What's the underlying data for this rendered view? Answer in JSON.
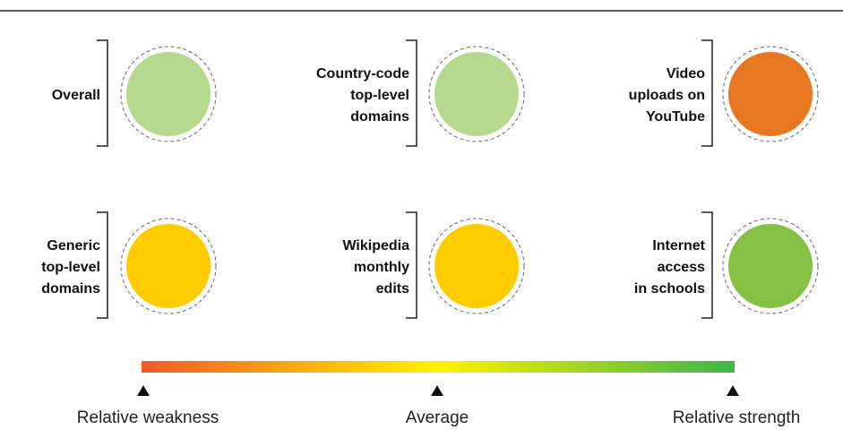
{
  "items": [
    {
      "label": [
        "Overall"
      ],
      "color": "#b5d98f"
    },
    {
      "label": [
        "Country-code",
        "top-level",
        "domains"
      ],
      "color": "#b5d98f"
    },
    {
      "label": [
        "Video",
        "uploads on",
        "YouTube"
      ],
      "color": "#e87722"
    },
    {
      "label": [
        "Generic",
        "top-level",
        "domains"
      ],
      "color": "#ffcc00"
    },
    {
      "label": [
        "Wikipedia",
        "monthly",
        "edits"
      ],
      "color": "#ffcc00"
    },
    {
      "label": [
        "Internet",
        "access",
        "in schools"
      ],
      "color": "#86c044"
    }
  ],
  "scale": {
    "labels": [
      "Relative weakness",
      "Average",
      "Relative strength"
    ],
    "gradient": [
      "#f05a28",
      "#fff200",
      "#3db54a"
    ]
  }
}
